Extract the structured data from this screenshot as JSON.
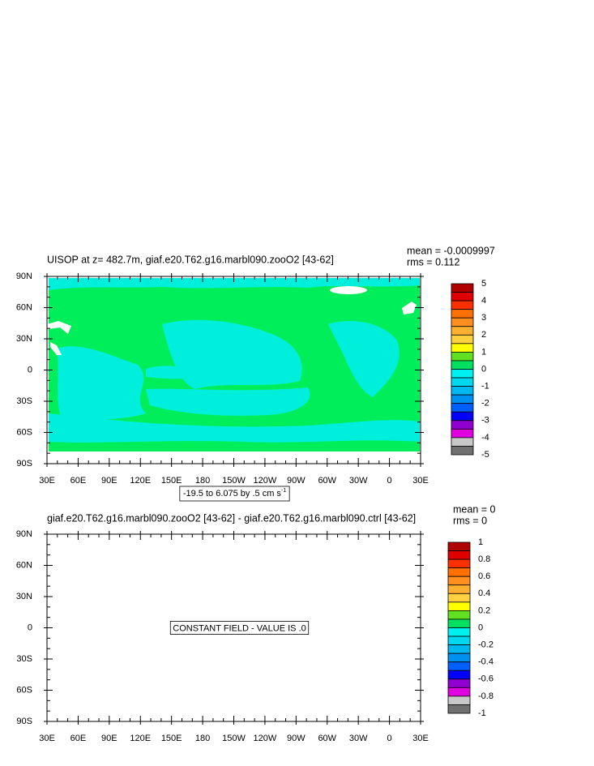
{
  "chart_data": [
    {
      "type": "contour",
      "title": "UISOP at z= 482.7m, giaf.e20.T62.g16.marbl090.zooO2 [43-62]",
      "mean_label": "mean = -0.0009997",
      "rms_label": "rms = 0.112",
      "contour_info": "-19.5 to 6.075 by .5 cm s",
      "contour_info_units_exponent": "-1",
      "xlim": [
        30,
        390
      ],
      "xticks": [
        {
          "value": 30,
          "label": "30E"
        },
        {
          "value": 60,
          "label": "60E"
        },
        {
          "value": 90,
          "label": "90E"
        },
        {
          "value": 120,
          "label": "120E"
        },
        {
          "value": 150,
          "label": "150E"
        },
        {
          "value": 180,
          "label": "180"
        },
        {
          "value": 210,
          "label": "150W"
        },
        {
          "value": 240,
          "label": "120W"
        },
        {
          "value": 270,
          "label": "90W"
        },
        {
          "value": 300,
          "label": "60W"
        },
        {
          "value": 330,
          "label": "30W"
        },
        {
          "value": 360,
          "label": "0"
        },
        {
          "value": 390,
          "label": "30E"
        }
      ],
      "ylim": [
        -90,
        90
      ],
      "yticks": [
        {
          "value": -90,
          "label": "90S"
        },
        {
          "value": -60,
          "label": "60S"
        },
        {
          "value": -30,
          "label": "30S"
        },
        0,
        {
          "value": 30,
          "label": "30N"
        },
        {
          "value": 60,
          "label": "60N"
        },
        {
          "value": 90,
          "label": "90N"
        }
      ],
      "colorbar_levels": [
        5,
        4,
        3,
        2,
        1,
        0,
        -1,
        -2,
        -3,
        -4,
        -5
      ],
      "colorbar_colors": [
        "#b00000",
        "#e00000",
        "#ff3000",
        "#ff7000",
        "#ff9020",
        "#ffb030",
        "#ffd040",
        "#ffff00",
        "#60e020",
        "#00e060",
        "#00f0f0",
        "#00d8f0",
        "#00b8f0",
        "#0090f0",
        "#0060ff",
        "#0000ff",
        "#9000d0",
        "#e000e0",
        "#c8c8c8",
        "#707070"
      ]
    },
    {
      "type": "contour",
      "title": "giaf.e20.T62.g16.marbl090.zooO2 [43-62] - giaf.e20.T62.g16.marbl090.ctrl [43-62]",
      "mean_label": "mean = 0",
      "rms_label": "rms = 0",
      "annotation": "CONSTANT FIELD - VALUE IS .0",
      "xlim": [
        30,
        390
      ],
      "xticks": [
        {
          "value": 30,
          "label": "30E"
        },
        {
          "value": 60,
          "label": "60E"
        },
        {
          "value": 90,
          "label": "90E"
        },
        {
          "value": 120,
          "label": "120E"
        },
        {
          "value": 150,
          "label": "150E"
        },
        {
          "value": 180,
          "label": "180"
        },
        {
          "value": 210,
          "label": "150W"
        },
        {
          "value": 240,
          "label": "120W"
        },
        {
          "value": 270,
          "label": "90W"
        },
        {
          "value": 300,
          "label": "60W"
        },
        {
          "value": 330,
          "label": "30W"
        },
        {
          "value": 360,
          "label": "0"
        },
        {
          "value": 390,
          "label": "30E"
        }
      ],
      "ylim": [
        -90,
        90
      ],
      "yticks": [
        {
          "value": -90,
          "label": "90S"
        },
        {
          "value": -60,
          "label": "60S"
        },
        {
          "value": -30,
          "label": "30S"
        },
        0,
        {
          "value": 30,
          "label": "30N"
        },
        {
          "value": 60,
          "label": "60N"
        },
        {
          "value": 90,
          "label": "90N"
        }
      ],
      "colorbar_levels": [
        1,
        0.8,
        0.6,
        0.4,
        0.2,
        0,
        -0.2,
        -0.4,
        -0.6,
        -0.8,
        -1
      ],
      "colorbar_colors": [
        "#b00000",
        "#e00000",
        "#ff3000",
        "#ff7000",
        "#ff9020",
        "#ffb030",
        "#ffd040",
        "#ffff00",
        "#60e020",
        "#00e060",
        "#00f0f0",
        "#00d8f0",
        "#00b8f0",
        "#0090f0",
        "#0060ff",
        "#0000ff",
        "#9000d0",
        "#e000e0",
        "#c8c8c8",
        "#707070"
      ]
    }
  ]
}
